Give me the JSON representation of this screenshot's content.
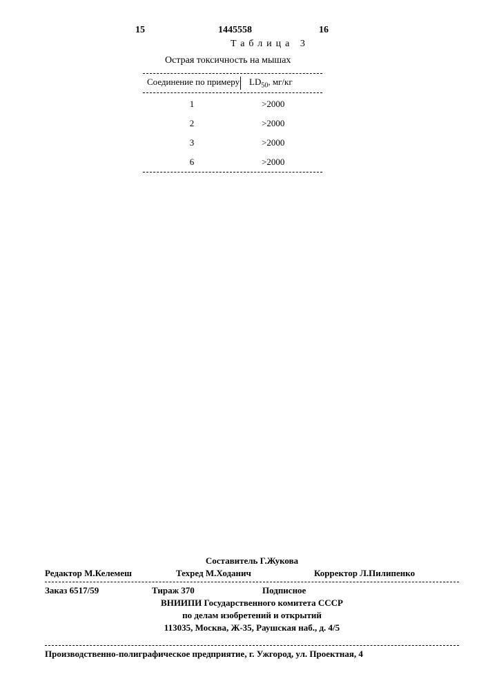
{
  "header": {
    "pageLeft": "15",
    "docNumber": "1445558",
    "pageRight": "16"
  },
  "table": {
    "label": "Таблица 3",
    "caption": "Острая токсичность на мышах",
    "col1Header": "Соединение по примеру",
    "col2HeaderPrefix": "LD",
    "col2HeaderSub": "50",
    "col2HeaderSuffix": ", мг/кг",
    "rows": [
      {
        "compound": "1",
        "value": ">2000"
      },
      {
        "compound": "2",
        "value": ">2000"
      },
      {
        "compound": "3",
        "value": ">2000"
      },
      {
        "compound": "6",
        "value": ">2000"
      }
    ]
  },
  "footer": {
    "compiler": "Составитель Г.Жукова",
    "editor": "Редактор М.Келемеш",
    "tehred": "Техред М.Ходанич",
    "corrector": "Корректор Л.Пилипенко",
    "zakaz": "Заказ 6517/59",
    "tirazh": "Тираж 370",
    "podpis": "Подписное",
    "org1": "ВНИИПИ Государственного комитета СССР",
    "org2": "по делам изобретений и открытий",
    "address1": "113035, Москва, Ж-35, Раушская наб., д. 4/5",
    "production": "Производственно-полиграфическое предприятие, г. Ужгород, ул. Проектная, 4"
  }
}
